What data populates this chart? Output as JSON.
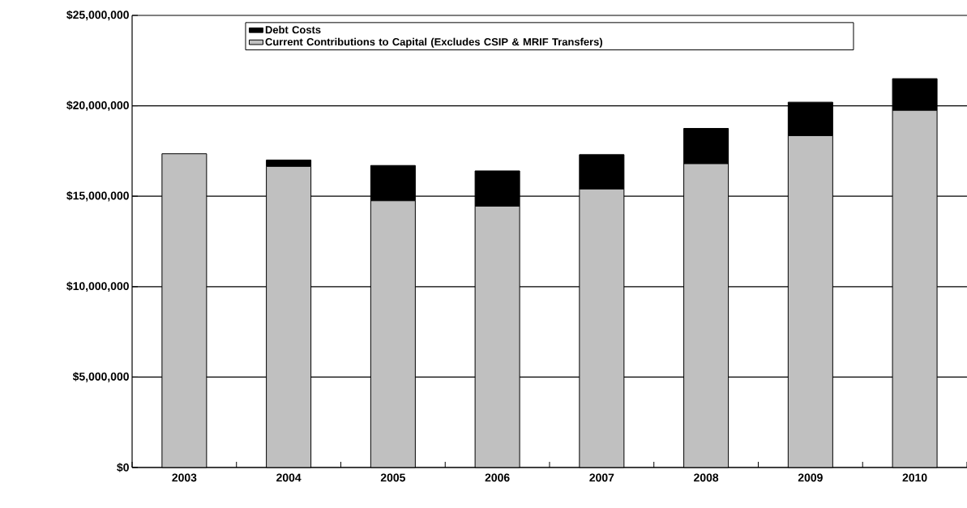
{
  "chart_data": {
    "type": "bar",
    "stacked": true,
    "categories": [
      "2003",
      "2004",
      "2005",
      "2006",
      "2007",
      "2008",
      "2009",
      "2010"
    ],
    "series": [
      {
        "name": "Current Contributions to Capital (Excludes CSIP & MRIF Transfers)",
        "color": "#c0c0c0",
        "values": [
          17350000,
          16650000,
          14750000,
          14450000,
          15400000,
          16800000,
          18350000,
          19750000
        ]
      },
      {
        "name": "Debt Costs",
        "color": "#000000",
        "values": [
          0,
          350000,
          1950000,
          1950000,
          1900000,
          1950000,
          1850000,
          1750000
        ]
      }
    ],
    "ylim": [
      0,
      25000000
    ],
    "yticks": [
      {
        "value": 0,
        "label": "$0"
      },
      {
        "value": 5000000,
        "label": "$5,000,000"
      },
      {
        "value": 10000000,
        "label": "$10,000,000"
      },
      {
        "value": 15000000,
        "label": "$15,000,000"
      },
      {
        "value": 20000000,
        "label": "$20,000,000"
      },
      {
        "value": 25000000,
        "label": "$25,000,000"
      }
    ],
    "grid": "y",
    "legend": "top"
  }
}
